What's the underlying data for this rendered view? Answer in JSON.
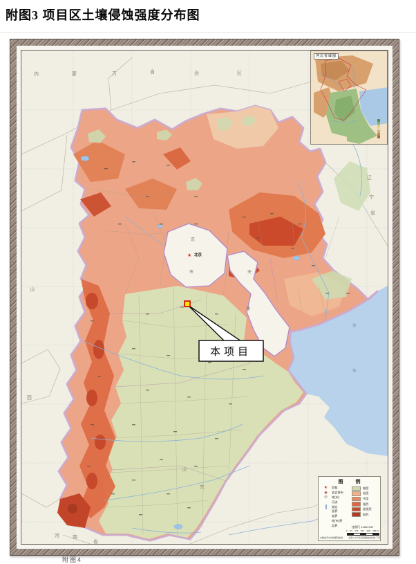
{
  "page": {
    "title": "附图3  项目区土壤侵蚀强度分布图",
    "footer_clipped": "附图4"
  },
  "map": {
    "inset_title": "河北省域图",
    "callout_label": "本项目",
    "sea_chars": [
      "渤",
      "海"
    ],
    "beijing": {
      "star": "★",
      "label": "北京",
      "char_top": "京",
      "char_bottom": "市"
    },
    "tianjin": {
      "char_top": "天",
      "char_bottom": "津"
    },
    "neighbors": [
      {
        "t": "内"
      },
      {
        "t": "蒙"
      },
      {
        "t": "古"
      },
      {
        "t": "自"
      },
      {
        "t": "治"
      },
      {
        "t": "区"
      },
      {
        "t": "山"
      },
      {
        "t": "西"
      },
      {
        "t": "辽"
      },
      {
        "t": "宁"
      },
      {
        "t": "省"
      },
      {
        "t": "河"
      },
      {
        "t": "南"
      },
      {
        "t": "省"
      },
      {
        "t": "山"
      },
      {
        "t": "东"
      }
    ]
  },
  "legend": {
    "title": "图 例",
    "left_items": [
      {
        "label": "首都"
      },
      {
        "label": "省会城市"
      },
      {
        "label": "地(市)"
      },
      {
        "label": "河流"
      },
      {
        "label": "湖泊"
      },
      {
        "label": "国界"
      },
      {
        "label": "省界"
      },
      {
        "label": "地(市)界"
      },
      {
        "label": "县界"
      }
    ],
    "classes": [
      {
        "label": "微度",
        "color": "#cddcb2"
      },
      {
        "label": "轻度",
        "color": "#f2b18c"
      },
      {
        "label": "中度",
        "color": "#e88a62"
      },
      {
        "label": "强烈",
        "color": "#de6742"
      },
      {
        "label": "极强烈",
        "color": "#cb4a2b"
      },
      {
        "label": "剧烈",
        "color": "#b23a22"
      }
    ],
    "scale_text": "比例尺 1:850 000",
    "scale_ticks": [
      "0",
      "87",
      "174",
      "261",
      "348",
      "435 km"
    ],
    "note_left": "本图由河北省制图院编制",
    "note_right": "采用1:25万系列底图缩编绘制,下同"
  }
}
